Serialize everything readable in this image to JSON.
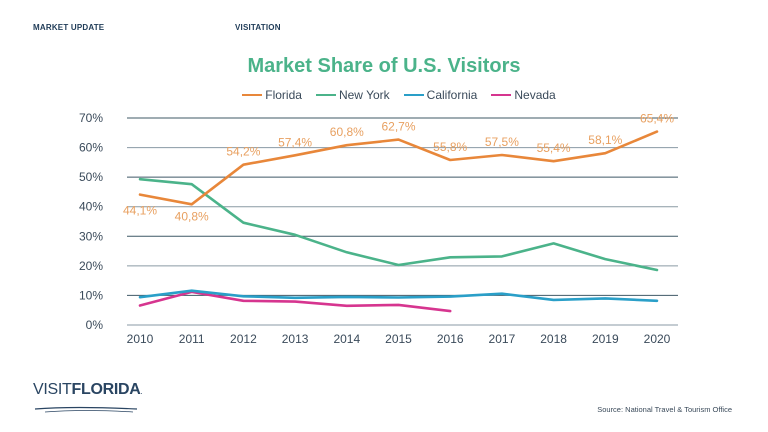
{
  "header": {
    "left": "MARKET UPDATE",
    "right": "VISITATION"
  },
  "logo": {
    "text_light": "VISIT",
    "text_bold": "FLORIDA",
    "suffix": "."
  },
  "source": "Source: National Travel & Tourism Office",
  "chart_data": {
    "type": "line",
    "title": "Market Share of U.S. Visitors",
    "xlabel": "",
    "ylabel": "",
    "x": [
      "2010",
      "2011",
      "2012",
      "2013",
      "2014",
      "2015",
      "2016",
      "2017",
      "2018",
      "2019",
      "2020"
    ],
    "yticks": [
      "0%",
      "10%",
      "20%",
      "30%",
      "40%",
      "50%",
      "60%",
      "70%"
    ],
    "ylim": [
      0,
      70
    ],
    "grid": true,
    "legend": "top-center",
    "series": [
      {
        "name": "Florida",
        "color": "#e8873a",
        "values": [
          44.1,
          40.8,
          54.2,
          57.4,
          60.8,
          62.7,
          55.8,
          57.5,
          55.4,
          58.1,
          65.4
        ],
        "labels": [
          "44,1%",
          "40,8%",
          "54,2%",
          "57,4%",
          "60,8%",
          "62,7%",
          "55,8%",
          "57,5%",
          "55,4%",
          "58,1%",
          "65,4%"
        ]
      },
      {
        "name": "New York",
        "color": "#4bb38a",
        "values": [
          49.3,
          47.6,
          34.6,
          30.5,
          24.6,
          20.3,
          22.9,
          23.2,
          27.6,
          22.3,
          18.6
        ]
      },
      {
        "name": "California",
        "color": "#2a9fc8",
        "values": [
          9.4,
          11.6,
          9.7,
          9.2,
          9.5,
          9.3,
          9.6,
          10.6,
          8.5,
          9.0,
          8.2
        ]
      },
      {
        "name": "Nevada",
        "color": "#d6358f",
        "values": [
          6.6,
          11.2,
          8.2,
          7.9,
          6.5,
          6.8,
          4.7
        ]
      }
    ]
  }
}
